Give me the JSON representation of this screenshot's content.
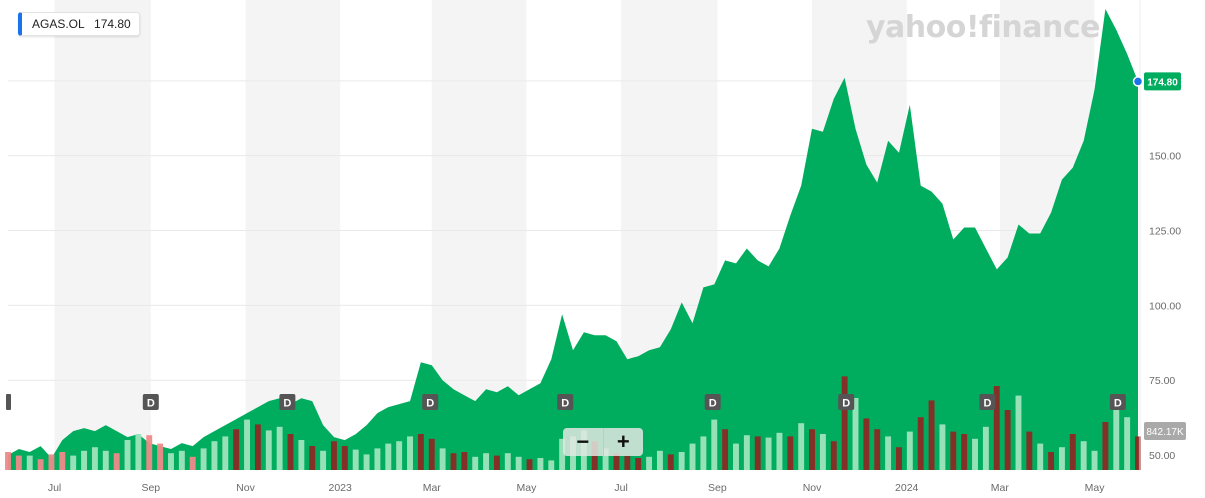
{
  "header": {
    "ticker": "AGAS.OL",
    "price": "174.80"
  },
  "watermark": "yahoo!finance",
  "zoom": {
    "out_label": "−",
    "in_label": "+"
  },
  "last_price_label": "174.80",
  "volume_label": "842.17K",
  "colors": {
    "area": "#00ad5f",
    "up_volume": "#9fe4bc",
    "down_volume": "#8b2b25",
    "down_volume_light": "#f08a8a",
    "band": "#f4f4f4",
    "marker": "#1a73e8",
    "volume_tag": "#a9a9a9"
  },
  "chart_data": {
    "type": "area",
    "ylim": [
      45,
      202
    ],
    "y_ticks": [
      50,
      75,
      100,
      125,
      150
    ],
    "y_tick_labels": [
      "50.00",
      "75.00",
      "100.00",
      "125.00",
      "150.00"
    ],
    "x_labels": [
      {
        "date": "2022-07-01",
        "label": "Jul"
      },
      {
        "date": "2022-09-01",
        "label": "Sep"
      },
      {
        "date": "2022-11-01",
        "label": "Nov"
      },
      {
        "date": "2023-01-01",
        "label": "2023"
      },
      {
        "date": "2023-03-01",
        "label": "Mar"
      },
      {
        "date": "2023-05-01",
        "label": "May"
      },
      {
        "date": "2023-07-01",
        "label": "Jul"
      },
      {
        "date": "2023-09-01",
        "label": "Sep"
      },
      {
        "date": "2023-11-01",
        "label": "Nov"
      },
      {
        "date": "2024-01-01",
        "label": "2024"
      },
      {
        "date": "2024-03-01",
        "label": "Mar"
      },
      {
        "date": "2024-05-01",
        "label": "May"
      }
    ],
    "dividends": [
      {
        "date": "2022-09-01",
        "label": "D"
      },
      {
        "date": "2022-11-28",
        "label": "D"
      },
      {
        "date": "2023-02-28",
        "label": "D"
      },
      {
        "date": "2023-05-26",
        "label": "D"
      },
      {
        "date": "2023-08-29",
        "label": "D"
      },
      {
        "date": "2023-11-23",
        "label": "D"
      },
      {
        "date": "2024-02-22",
        "label": "D"
      },
      {
        "date": "2024-05-16",
        "label": "D"
      }
    ],
    "series": [
      {
        "points": [
          {
            "date": "2022-06-01",
            "y": 50
          },
          {
            "date": "2022-06-08",
            "y": 52
          },
          {
            "date": "2022-06-15",
            "y": 51
          },
          {
            "date": "2022-06-22",
            "y": 53
          },
          {
            "date": "2022-06-29",
            "y": 49
          },
          {
            "date": "2022-07-06",
            "y": 55
          },
          {
            "date": "2022-07-13",
            "y": 58
          },
          {
            "date": "2022-07-20",
            "y": 59
          },
          {
            "date": "2022-07-27",
            "y": 58
          },
          {
            "date": "2022-08-03",
            "y": 60
          },
          {
            "date": "2022-08-10",
            "y": 58
          },
          {
            "date": "2022-08-17",
            "y": 56
          },
          {
            "date": "2022-08-24",
            "y": 57
          },
          {
            "date": "2022-08-31",
            "y": 54
          },
          {
            "date": "2022-09-07",
            "y": 53
          },
          {
            "date": "2022-09-14",
            "y": 52
          },
          {
            "date": "2022-09-21",
            "y": 54
          },
          {
            "date": "2022-09-28",
            "y": 53
          },
          {
            "date": "2022-10-05",
            "y": 56
          },
          {
            "date": "2022-10-12",
            "y": 58
          },
          {
            "date": "2022-10-19",
            "y": 60
          },
          {
            "date": "2022-10-26",
            "y": 62
          },
          {
            "date": "2022-11-02",
            "y": 64
          },
          {
            "date": "2022-11-09",
            "y": 66
          },
          {
            "date": "2022-11-16",
            "y": 68
          },
          {
            "date": "2022-11-23",
            "y": 69
          },
          {
            "date": "2022-11-30",
            "y": 67
          },
          {
            "date": "2022-12-07",
            "y": 69
          },
          {
            "date": "2022-12-14",
            "y": 68
          },
          {
            "date": "2022-12-21",
            "y": 60
          },
          {
            "date": "2022-12-28",
            "y": 56
          },
          {
            "date": "2023-01-04",
            "y": 55
          },
          {
            "date": "2023-01-11",
            "y": 57
          },
          {
            "date": "2023-01-18",
            "y": 60
          },
          {
            "date": "2023-01-25",
            "y": 64
          },
          {
            "date": "2023-02-01",
            "y": 66
          },
          {
            "date": "2023-02-08",
            "y": 67
          },
          {
            "date": "2023-02-15",
            "y": 68
          },
          {
            "date": "2023-02-22",
            "y": 81
          },
          {
            "date": "2023-03-01",
            "y": 80
          },
          {
            "date": "2023-03-08",
            "y": 75
          },
          {
            "date": "2023-03-15",
            "y": 72
          },
          {
            "date": "2023-03-22",
            "y": 70
          },
          {
            "date": "2023-03-29",
            "y": 68
          },
          {
            "date": "2023-04-05",
            "y": 72
          },
          {
            "date": "2023-04-12",
            "y": 71
          },
          {
            "date": "2023-04-19",
            "y": 73
          },
          {
            "date": "2023-04-26",
            "y": 70
          },
          {
            "date": "2023-05-03",
            "y": 72
          },
          {
            "date": "2023-05-10",
            "y": 74
          },
          {
            "date": "2023-05-17",
            "y": 82
          },
          {
            "date": "2023-05-24",
            "y": 97
          },
          {
            "date": "2023-05-31",
            "y": 85
          },
          {
            "date": "2023-06-07",
            "y": 91
          },
          {
            "date": "2023-06-14",
            "y": 90
          },
          {
            "date": "2023-06-21",
            "y": 90
          },
          {
            "date": "2023-06-28",
            "y": 88
          },
          {
            "date": "2023-07-05",
            "y": 82
          },
          {
            "date": "2023-07-12",
            "y": 83
          },
          {
            "date": "2023-07-19",
            "y": 85
          },
          {
            "date": "2023-07-26",
            "y": 86
          },
          {
            "date": "2023-08-02",
            "y": 92
          },
          {
            "date": "2023-08-09",
            "y": 101
          },
          {
            "date": "2023-08-16",
            "y": 94
          },
          {
            "date": "2023-08-23",
            "y": 106
          },
          {
            "date": "2023-08-30",
            "y": 107
          },
          {
            "date": "2023-09-06",
            "y": 115
          },
          {
            "date": "2023-09-13",
            "y": 114
          },
          {
            "date": "2023-09-20",
            "y": 119
          },
          {
            "date": "2023-09-27",
            "y": 115
          },
          {
            "date": "2023-10-04",
            "y": 113
          },
          {
            "date": "2023-10-11",
            "y": 119
          },
          {
            "date": "2023-10-18",
            "y": 130
          },
          {
            "date": "2023-10-25",
            "y": 140
          },
          {
            "date": "2023-11-01",
            "y": 159
          },
          {
            "date": "2023-11-08",
            "y": 158
          },
          {
            "date": "2023-11-15",
            "y": 169
          },
          {
            "date": "2023-11-22",
            "y": 176
          },
          {
            "date": "2023-11-29",
            "y": 159
          },
          {
            "date": "2023-12-06",
            "y": 147
          },
          {
            "date": "2023-12-13",
            "y": 141
          },
          {
            "date": "2023-12-20",
            "y": 155
          },
          {
            "date": "2023-12-27",
            "y": 151
          },
          {
            "date": "2024-01-03",
            "y": 167
          },
          {
            "date": "2024-01-10",
            "y": 140
          },
          {
            "date": "2024-01-17",
            "y": 138
          },
          {
            "date": "2024-01-24",
            "y": 134
          },
          {
            "date": "2024-01-31",
            "y": 122
          },
          {
            "date": "2024-02-07",
            "y": 126
          },
          {
            "date": "2024-02-14",
            "y": 126
          },
          {
            "date": "2024-02-21",
            "y": 119
          },
          {
            "date": "2024-02-28",
            "y": 112
          },
          {
            "date": "2024-03-06",
            "y": 116
          },
          {
            "date": "2024-03-13",
            "y": 127
          },
          {
            "date": "2024-03-20",
            "y": 124
          },
          {
            "date": "2024-03-27",
            "y": 124
          },
          {
            "date": "2024-04-03",
            "y": 131
          },
          {
            "date": "2024-04-10",
            "y": 142
          },
          {
            "date": "2024-04-17",
            "y": 146
          },
          {
            "date": "2024-04-24",
            "y": 155
          },
          {
            "date": "2024-05-01",
            "y": 172
          },
          {
            "date": "2024-05-08",
            "y": 199
          },
          {
            "date": "2024-05-15",
            "y": 192
          },
          {
            "date": "2024-05-22",
            "y": 184
          },
          {
            "date": "2024-05-29",
            "y": 174.8
          }
        ]
      }
    ],
    "volume": [
      {
        "date": "2022-06-01",
        "v": 0.15,
        "dir": "down"
      },
      {
        "date": "2022-06-08",
        "v": 0.12,
        "dir": "down"
      },
      {
        "date": "2022-06-15",
        "v": 0.12,
        "dir": "up"
      },
      {
        "date": "2022-06-22",
        "v": 0.09,
        "dir": "down"
      },
      {
        "date": "2022-06-29",
        "v": 0.13,
        "dir": "down"
      },
      {
        "date": "2022-07-06",
        "v": 0.15,
        "dir": "down"
      },
      {
        "date": "2022-07-13",
        "v": 0.12,
        "dir": "up"
      },
      {
        "date": "2022-07-20",
        "v": 0.16,
        "dir": "up"
      },
      {
        "date": "2022-07-27",
        "v": 0.19,
        "dir": "up"
      },
      {
        "date": "2022-08-03",
        "v": 0.16,
        "dir": "up"
      },
      {
        "date": "2022-08-10",
        "v": 0.14,
        "dir": "down"
      },
      {
        "date": "2022-08-17",
        "v": 0.25,
        "dir": "up"
      },
      {
        "date": "2022-08-24",
        "v": 0.3,
        "dir": "up"
      },
      {
        "date": "2022-08-31",
        "v": 0.29,
        "dir": "down"
      },
      {
        "date": "2022-09-07",
        "v": 0.22,
        "dir": "down"
      },
      {
        "date": "2022-09-14",
        "v": 0.14,
        "dir": "up"
      },
      {
        "date": "2022-09-21",
        "v": 0.16,
        "dir": "up"
      },
      {
        "date": "2022-09-28",
        "v": 0.11,
        "dir": "down"
      },
      {
        "date": "2022-10-05",
        "v": 0.18,
        "dir": "up"
      },
      {
        "date": "2022-10-12",
        "v": 0.24,
        "dir": "up"
      },
      {
        "date": "2022-10-19",
        "v": 0.28,
        "dir": "up"
      },
      {
        "date": "2022-10-26",
        "v": 0.34,
        "dir": "down"
      },
      {
        "date": "2022-11-02",
        "v": 0.42,
        "dir": "up"
      },
      {
        "date": "2022-11-09",
        "v": 0.38,
        "dir": "down"
      },
      {
        "date": "2022-11-16",
        "v": 0.33,
        "dir": "up"
      },
      {
        "date": "2022-11-23",
        "v": 0.36,
        "dir": "up"
      },
      {
        "date": "2022-11-30",
        "v": 0.3,
        "dir": "down"
      },
      {
        "date": "2022-12-07",
        "v": 0.25,
        "dir": "up"
      },
      {
        "date": "2022-12-14",
        "v": 0.2,
        "dir": "down"
      },
      {
        "date": "2022-12-21",
        "v": 0.16,
        "dir": "up"
      },
      {
        "date": "2022-12-28",
        "v": 0.24,
        "dir": "down"
      },
      {
        "date": "2023-01-04",
        "v": 0.2,
        "dir": "down"
      },
      {
        "date": "2023-01-11",
        "v": 0.17,
        "dir": "up"
      },
      {
        "date": "2023-01-18",
        "v": 0.13,
        "dir": "up"
      },
      {
        "date": "2023-01-25",
        "v": 0.18,
        "dir": "up"
      },
      {
        "date": "2023-02-01",
        "v": 0.22,
        "dir": "up"
      },
      {
        "date": "2023-02-08",
        "v": 0.24,
        "dir": "up"
      },
      {
        "date": "2023-02-15",
        "v": 0.28,
        "dir": "up"
      },
      {
        "date": "2023-02-22",
        "v": 0.3,
        "dir": "down"
      },
      {
        "date": "2023-03-01",
        "v": 0.26,
        "dir": "down"
      },
      {
        "date": "2023-03-08",
        "v": 0.18,
        "dir": "up"
      },
      {
        "date": "2023-03-15",
        "v": 0.14,
        "dir": "down"
      },
      {
        "date": "2023-03-22",
        "v": 0.15,
        "dir": "down"
      },
      {
        "date": "2023-03-29",
        "v": 0.11,
        "dir": "up"
      },
      {
        "date": "2023-04-05",
        "v": 0.14,
        "dir": "up"
      },
      {
        "date": "2023-04-12",
        "v": 0.12,
        "dir": "down"
      },
      {
        "date": "2023-04-19",
        "v": 0.14,
        "dir": "up"
      },
      {
        "date": "2023-04-26",
        "v": 0.11,
        "dir": "up"
      },
      {
        "date": "2023-05-03",
        "v": 0.09,
        "dir": "down"
      },
      {
        "date": "2023-05-10",
        "v": 0.1,
        "dir": "up"
      },
      {
        "date": "2023-05-17",
        "v": 0.08,
        "dir": "up"
      },
      {
        "date": "2023-05-24",
        "v": 0.26,
        "dir": "up"
      },
      {
        "date": "2023-05-31",
        "v": 0.28,
        "dir": "up"
      },
      {
        "date": "2023-06-07",
        "v": 0.33,
        "dir": "up"
      },
      {
        "date": "2023-06-14",
        "v": 0.24,
        "dir": "down"
      },
      {
        "date": "2023-06-21",
        "v": 0.18,
        "dir": "up"
      },
      {
        "date": "2023-06-28",
        "v": 0.14,
        "dir": "down"
      },
      {
        "date": "2023-07-05",
        "v": 0.12,
        "dir": "down"
      },
      {
        "date": "2023-07-12",
        "v": 0.1,
        "dir": "down"
      },
      {
        "date": "2023-07-19",
        "v": 0.11,
        "dir": "up"
      },
      {
        "date": "2023-07-26",
        "v": 0.16,
        "dir": "up"
      },
      {
        "date": "2023-08-02",
        "v": 0.13,
        "dir": "down"
      },
      {
        "date": "2023-08-09",
        "v": 0.15,
        "dir": "up"
      },
      {
        "date": "2023-08-16",
        "v": 0.22,
        "dir": "up"
      },
      {
        "date": "2023-08-23",
        "v": 0.28,
        "dir": "up"
      },
      {
        "date": "2023-08-30",
        "v": 0.42,
        "dir": "up"
      },
      {
        "date": "2023-09-06",
        "v": 0.34,
        "dir": "down"
      },
      {
        "date": "2023-09-13",
        "v": 0.22,
        "dir": "up"
      },
      {
        "date": "2023-09-20",
        "v": 0.29,
        "dir": "up"
      },
      {
        "date": "2023-09-27",
        "v": 0.28,
        "dir": "down"
      },
      {
        "date": "2023-10-04",
        "v": 0.27,
        "dir": "up"
      },
      {
        "date": "2023-10-11",
        "v": 0.31,
        "dir": "up"
      },
      {
        "date": "2023-10-18",
        "v": 0.28,
        "dir": "down"
      },
      {
        "date": "2023-10-25",
        "v": 0.39,
        "dir": "up"
      },
      {
        "date": "2023-11-01",
        "v": 0.34,
        "dir": "down"
      },
      {
        "date": "2023-11-08",
        "v": 0.3,
        "dir": "up"
      },
      {
        "date": "2023-11-15",
        "v": 0.24,
        "dir": "down"
      },
      {
        "date": "2023-11-22",
        "v": 0.78,
        "dir": "down"
      },
      {
        "date": "2023-11-29",
        "v": 0.6,
        "dir": "up"
      },
      {
        "date": "2023-12-06",
        "v": 0.43,
        "dir": "down"
      },
      {
        "date": "2023-12-13",
        "v": 0.34,
        "dir": "down"
      },
      {
        "date": "2023-12-20",
        "v": 0.28,
        "dir": "up"
      },
      {
        "date": "2023-12-27",
        "v": 0.19,
        "dir": "down"
      },
      {
        "date": "2024-01-03",
        "v": 0.32,
        "dir": "up"
      },
      {
        "date": "2024-01-10",
        "v": 0.44,
        "dir": "down"
      },
      {
        "date": "2024-01-17",
        "v": 0.58,
        "dir": "down"
      },
      {
        "date": "2024-01-24",
        "v": 0.38,
        "dir": "up"
      },
      {
        "date": "2024-01-31",
        "v": 0.32,
        "dir": "down"
      },
      {
        "date": "2024-02-07",
        "v": 0.3,
        "dir": "down"
      },
      {
        "date": "2024-02-14",
        "v": 0.26,
        "dir": "up"
      },
      {
        "date": "2024-02-21",
        "v": 0.36,
        "dir": "up"
      },
      {
        "date": "2024-02-28",
        "v": 0.7,
        "dir": "down"
      },
      {
        "date": "2024-03-06",
        "v": 0.5,
        "dir": "down"
      },
      {
        "date": "2024-03-13",
        "v": 0.62,
        "dir": "up"
      },
      {
        "date": "2024-03-20",
        "v": 0.32,
        "dir": "down"
      },
      {
        "date": "2024-03-27",
        "v": 0.22,
        "dir": "up"
      },
      {
        "date": "2024-04-03",
        "v": 0.15,
        "dir": "down"
      },
      {
        "date": "2024-04-10",
        "v": 0.19,
        "dir": "up"
      },
      {
        "date": "2024-04-17",
        "v": 0.3,
        "dir": "down"
      },
      {
        "date": "2024-04-24",
        "v": 0.24,
        "dir": "up"
      },
      {
        "date": "2024-05-01",
        "v": 0.16,
        "dir": "up"
      },
      {
        "date": "2024-05-08",
        "v": 0.4,
        "dir": "down"
      },
      {
        "date": "2024-05-15",
        "v": 0.5,
        "dir": "up"
      },
      {
        "date": "2024-05-22",
        "v": 0.44,
        "dir": "up"
      },
      {
        "date": "2024-05-29",
        "v": 0.28,
        "dir": "down"
      }
    ]
  }
}
